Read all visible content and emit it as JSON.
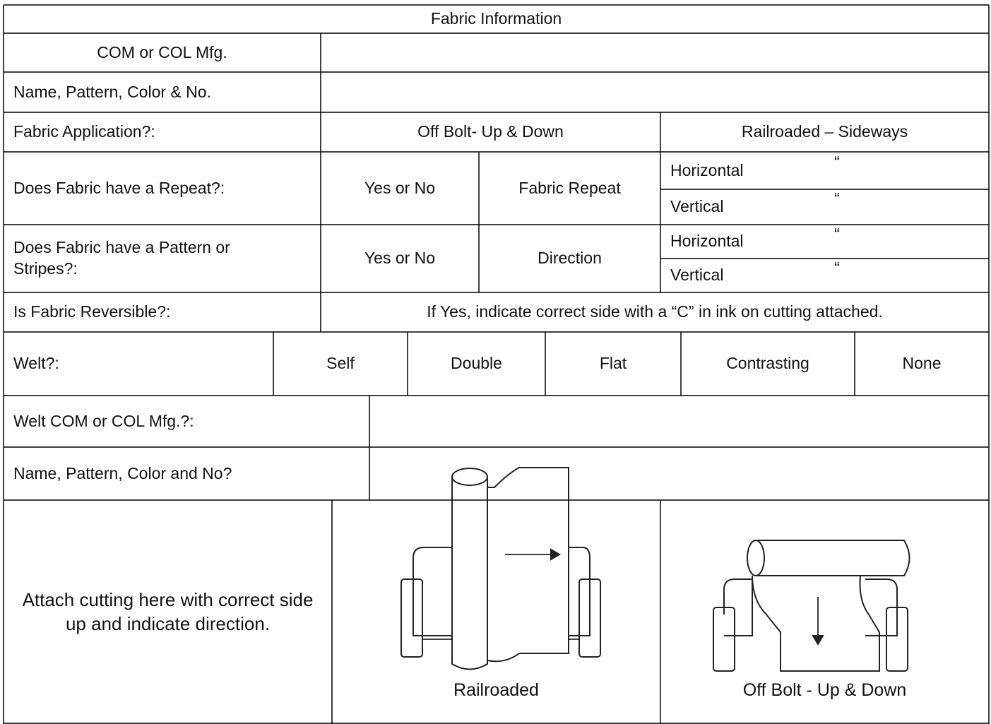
{
  "title": "Fabric Information",
  "rows": [
    [
      "COM or COL Mfg."
    ],
    [
      "Name, Pattern, Color & No."
    ],
    [
      "Fabric Application?:",
      "Off Bolt- Up & Down",
      "Railroaded – Sideways"
    ],
    [
      "Does Fabric have a Repeat?:",
      "Yes or No",
      "Fabric Repeat",
      "Horizontal",
      "“",
      "Vertical",
      "“"
    ],
    [
      "Does Fabric have a Pattern or Stripes?:",
      "Yes or No",
      "Direction",
      "Horizontal",
      "“",
      "Vertical",
      "“"
    ],
    [
      "Is Fabric Reversible?:",
      "If Yes, indicate correct side with a “C” in ink on cutting attached."
    ],
    [
      "Welt?:",
      "Self",
      "Double",
      "Flat",
      "Contrasting",
      "None"
    ],
    [
      "Welt COM or COL Mfg.?:"
    ],
    [
      "Name, Pattern, Color and No?"
    ],
    [
      "Attach cutting here with correct side up and indicate direction.",
      "Railroaded",
      "Off Bolt - Up & Down"
    ]
  ]
}
